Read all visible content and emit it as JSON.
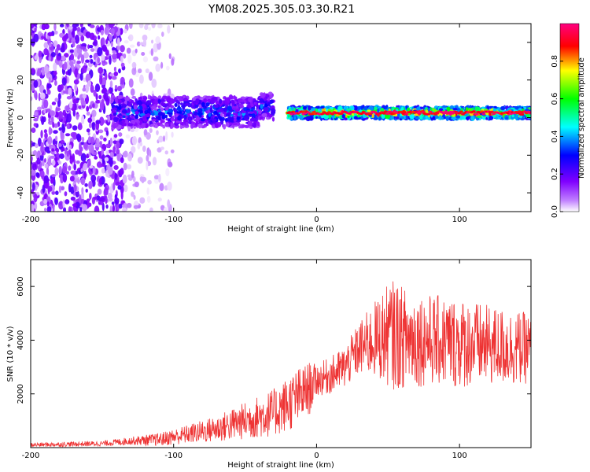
{
  "figure_title": "YM08.2025.305.03.30.R21",
  "colors": {
    "snr_line": "#ee3333",
    "axes": "#000000",
    "background": "#ffffff"
  },
  "chart_data": [
    {
      "type": "heatmap",
      "xlabel": "Height of straight line (km)",
      "ylabel": "Frequency (Hz)",
      "xlim": [
        -200,
        150
      ],
      "ylim": [
        -50,
        50
      ],
      "xticks": [
        -200,
        -100,
        0,
        100
      ],
      "yticks": [
        -40,
        -20,
        0,
        20,
        40
      ],
      "grid": false,
      "colorbar": {
        "label": "Normalized spectral amplitude",
        "range": [
          0,
          1
        ],
        "ticks": [
          "0.0",
          "0.2",
          "0.4",
          "0.6",
          "0.8"
        ],
        "tick_values": [
          0.0,
          0.2,
          0.4,
          0.6,
          0.8
        ],
        "colormap": [
          "#ffffff",
          "#8000ff",
          "#0000ff",
          "#00ffff",
          "#00ff00",
          "#ffff00",
          "#ff0000",
          "#ff0080"
        ]
      },
      "regions": [
        {
          "x_range": [
            -200,
            -135
          ],
          "freq_spread": [
            -50,
            50
          ],
          "amplitude": 0.15,
          "note": "noise scatter"
        },
        {
          "x_range": [
            -135,
            -100
          ],
          "freq_spread": [
            -50,
            50
          ],
          "amplitude": 0.05,
          "note": "sparse faint noise"
        },
        {
          "x_range": [
            -143,
            -40
          ],
          "freq_center": 3,
          "freq_halfwidth": 8,
          "amplitude": 0.35
        },
        {
          "x_range": [
            -40,
            -30
          ],
          "freq_center": 6,
          "freq_halfwidth": 7,
          "amplitude": 0.35
        },
        {
          "x_range": [
            -20,
            150
          ],
          "freq_center": 2.5,
          "freq_halfwidth": 3,
          "amplitude": 0.9,
          "note": "ridge"
        }
      ]
    },
    {
      "type": "line",
      "xlabel": "Height of straight line (km)",
      "ylabel": "SNR (10 * v/v)",
      "xlim": [
        -200,
        150
      ],
      "ylim": [
        0,
        7000
      ],
      "xticks": [
        -200,
        -100,
        0,
        100
      ],
      "yticks": [
        2000,
        4000,
        6000
      ],
      "grid": false,
      "series": [
        {
          "name": "SNR",
          "envelope_x": [
            -200,
            -150,
            -130,
            -110,
            -90,
            -70,
            -50,
            -30,
            -15,
            -5,
            0,
            10,
            20,
            30,
            40,
            50,
            55,
            60,
            80,
            100,
            120,
            140,
            150
          ],
          "envelope_mean": [
            100,
            150,
            250,
            300,
            500,
            700,
            1000,
            1300,
            1800,
            2200,
            2500,
            2700,
            3000,
            3700,
            4000,
            4200,
            4200,
            4100,
            4000,
            3900,
            3800,
            3700,
            3700
          ],
          "envelope_spread": [
            80,
            100,
            150,
            250,
            350,
            500,
            700,
            900,
            1100,
            1000,
            600,
            700,
            800,
            1000,
            1400,
            1900,
            2100,
            1900,
            1700,
            1700,
            1500,
            1400,
            1300
          ]
        }
      ]
    }
  ]
}
